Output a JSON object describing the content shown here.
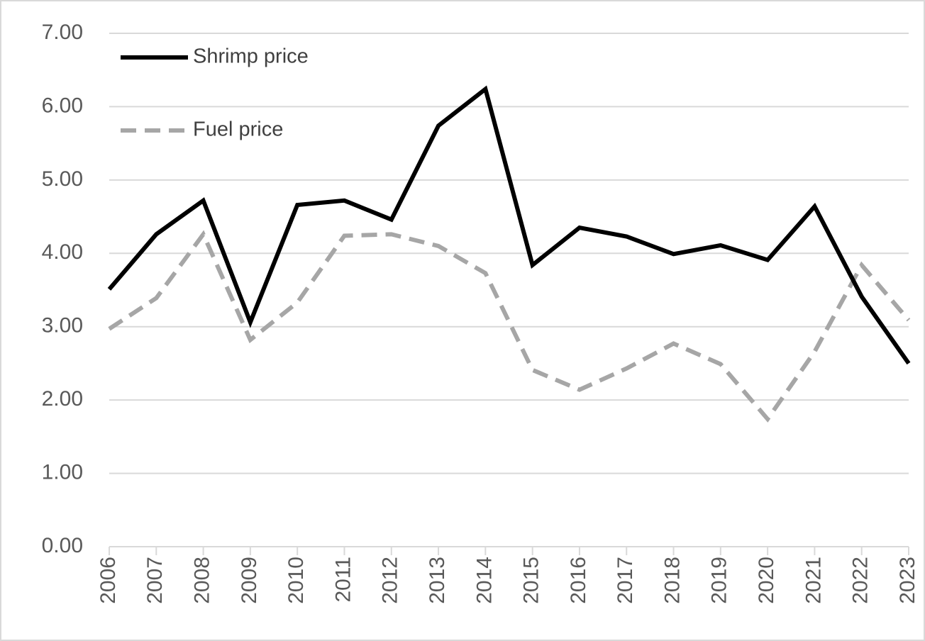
{
  "chart_data": {
    "type": "line",
    "categories": [
      "2006",
      "2007",
      "2008",
      "2009",
      "2010",
      "2011",
      "2012",
      "2013",
      "2014",
      "2015",
      "2016",
      "2017",
      "2018",
      "2019",
      "2020",
      "2021",
      "2022",
      "2023"
    ],
    "series": [
      {
        "name": "Shrimp price",
        "color": "#000000",
        "dashed": false,
        "values": [
          3.51,
          4.26,
          4.72,
          3.06,
          4.66,
          4.72,
          4.46,
          5.74,
          6.24,
          3.84,
          4.35,
          4.23,
          3.99,
          4.11,
          3.91,
          4.64,
          3.41,
          2.5
        ]
      },
      {
        "name": "Fuel price",
        "color": "#a6a6a6",
        "dashed": true,
        "values": [
          2.97,
          3.39,
          4.26,
          2.82,
          3.33,
          4.24,
          4.26,
          4.1,
          3.73,
          2.41,
          2.14,
          2.43,
          2.77,
          2.49,
          1.74,
          2.66,
          3.84,
          3.09
        ]
      }
    ],
    "ylim": [
      0,
      7
    ],
    "yticks": [
      {
        "value": 0,
        "label": "0.00"
      },
      {
        "value": 1,
        "label": "1.00"
      },
      {
        "value": 2,
        "label": "2.00"
      },
      {
        "value": 3,
        "label": "3.00"
      },
      {
        "value": 4,
        "label": "4.00"
      },
      {
        "value": 5,
        "label": "5.00"
      },
      {
        "value": 6,
        "label": "6.00"
      },
      {
        "value": 7,
        "label": "7.00"
      }
    ],
    "grid": true,
    "legend": "top-left"
  }
}
